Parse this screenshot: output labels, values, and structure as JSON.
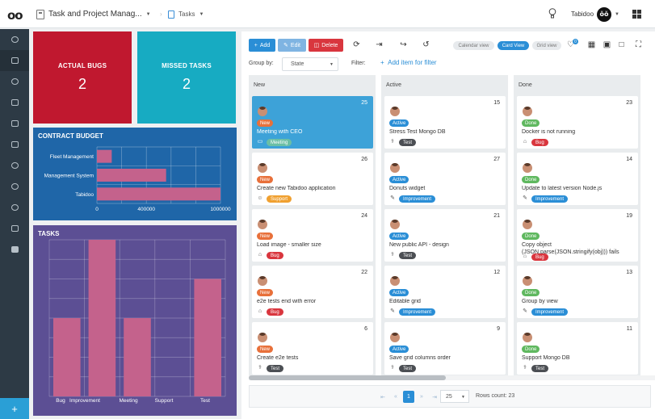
{
  "topbar": {
    "logo": "oo",
    "app_title": "Task and Project Manag...",
    "tab_title": "Tasks",
    "user_name": "Tabidoo",
    "avatar_text": "ŏŏ"
  },
  "sidebar": {
    "icons": [
      "dashboard-icon",
      "document-icon",
      "analytics-icon",
      "money-icon",
      "table-icon",
      "list-icon",
      "user-icon",
      "users-icon",
      "eye-icon",
      "form-icon",
      "square-icon"
    ],
    "add_label": "+"
  },
  "kpi": {
    "actual_bugs": {
      "label": "ACTUAL BUGS",
      "value": "2",
      "color": "#c0182f"
    },
    "missed_tasks": {
      "label": "MISSED TASKS",
      "value": "2",
      "color": "#17abc2"
    }
  },
  "chart_data": [
    {
      "type": "bar",
      "orientation": "horizontal",
      "title": "CONTRACT BUDGET",
      "categories": [
        "Fleet Management",
        "Management System",
        "Tabidoo"
      ],
      "values": [
        120000,
        560000,
        1000000
      ],
      "xlim": [
        0,
        1000000
      ],
      "xticks": [
        "0",
        "400000",
        "1000000"
      ],
      "bar_color": "#c4628c",
      "grid": true
    },
    {
      "type": "bar",
      "title": "TASKS",
      "categories": [
        "Bug",
        "Improvement",
        "Meeting",
        "Support",
        "Test"
      ],
      "values": [
        4,
        8,
        4,
        0,
        6
      ],
      "ylim": [
        0,
        8
      ],
      "bar_color": "#c4628c",
      "grid": true
    }
  ],
  "toolbar": {
    "add": "Add",
    "edit": "Edit",
    "delete": "Delete",
    "views": {
      "calendar": "Calendar view",
      "card": "Card View",
      "grid": "Grid view"
    },
    "badge": "0"
  },
  "filters": {
    "group_by_label": "Group by:",
    "group_by_value": "State",
    "filter_label": "Filter:",
    "add_filter": "Add item for filter"
  },
  "board": {
    "columns": [
      {
        "name": "New",
        "cards": [
          {
            "num": "25",
            "status": "New",
            "title": "Meeting with CEO",
            "tag": "Meeting",
            "icon": "▭",
            "selected": true
          },
          {
            "num": "26",
            "status": "New",
            "title": "Create new Tabidoo application",
            "tag": "Support",
            "icon": "☺"
          },
          {
            "num": "24",
            "status": "New",
            "title": "Load image - smaller size",
            "tag": "Bug",
            "icon": "⌂"
          },
          {
            "num": "22",
            "status": "New",
            "title": "e2e tests end with error",
            "tag": "Bug",
            "icon": "⌂"
          },
          {
            "num": "6",
            "status": "New",
            "title": "Create e2e tests",
            "tag": "Test",
            "icon": "⚕"
          }
        ]
      },
      {
        "name": "Active",
        "cards": [
          {
            "num": "15",
            "status": "Active",
            "title": "Stress Test Mongo DB",
            "tag": "Test",
            "icon": "⚕"
          },
          {
            "num": "27",
            "status": "Active",
            "title": "Donuts widget",
            "tag": "Improvement",
            "icon": "✎"
          },
          {
            "num": "21",
            "status": "Active",
            "title": "New public API - design",
            "tag": "Test",
            "icon": "⚕"
          },
          {
            "num": "12",
            "status": "Active",
            "title": "Editable grid",
            "tag": "Improvement",
            "icon": "✎"
          },
          {
            "num": "9",
            "status": "Active",
            "title": "Save grid columns order",
            "tag": "Test",
            "icon": "⚕"
          }
        ]
      },
      {
        "name": "Done",
        "cards": [
          {
            "num": "23",
            "status": "Done",
            "title": "Docker is not running",
            "tag": "Bug",
            "icon": "⌂"
          },
          {
            "num": "14",
            "status": "Done",
            "title": "Update to latest version Node.js",
            "tag": "Improvement",
            "icon": "✎"
          },
          {
            "num": "19",
            "status": "Done",
            "title": "Copy object (JSON.parse(JSON.stringify(obj))) fails",
            "tag": "Bug",
            "icon": "⌂"
          },
          {
            "num": "13",
            "status": "Done",
            "title": "Group by view",
            "tag": "Improvement",
            "icon": "✎"
          },
          {
            "num": "11",
            "status": "Done",
            "title": "Support Mongo DB",
            "tag": "Test",
            "icon": "⚕"
          }
        ]
      }
    ]
  },
  "pager": {
    "current_page": "1",
    "page_size": "25",
    "rows_count": "Rows count: 23"
  }
}
